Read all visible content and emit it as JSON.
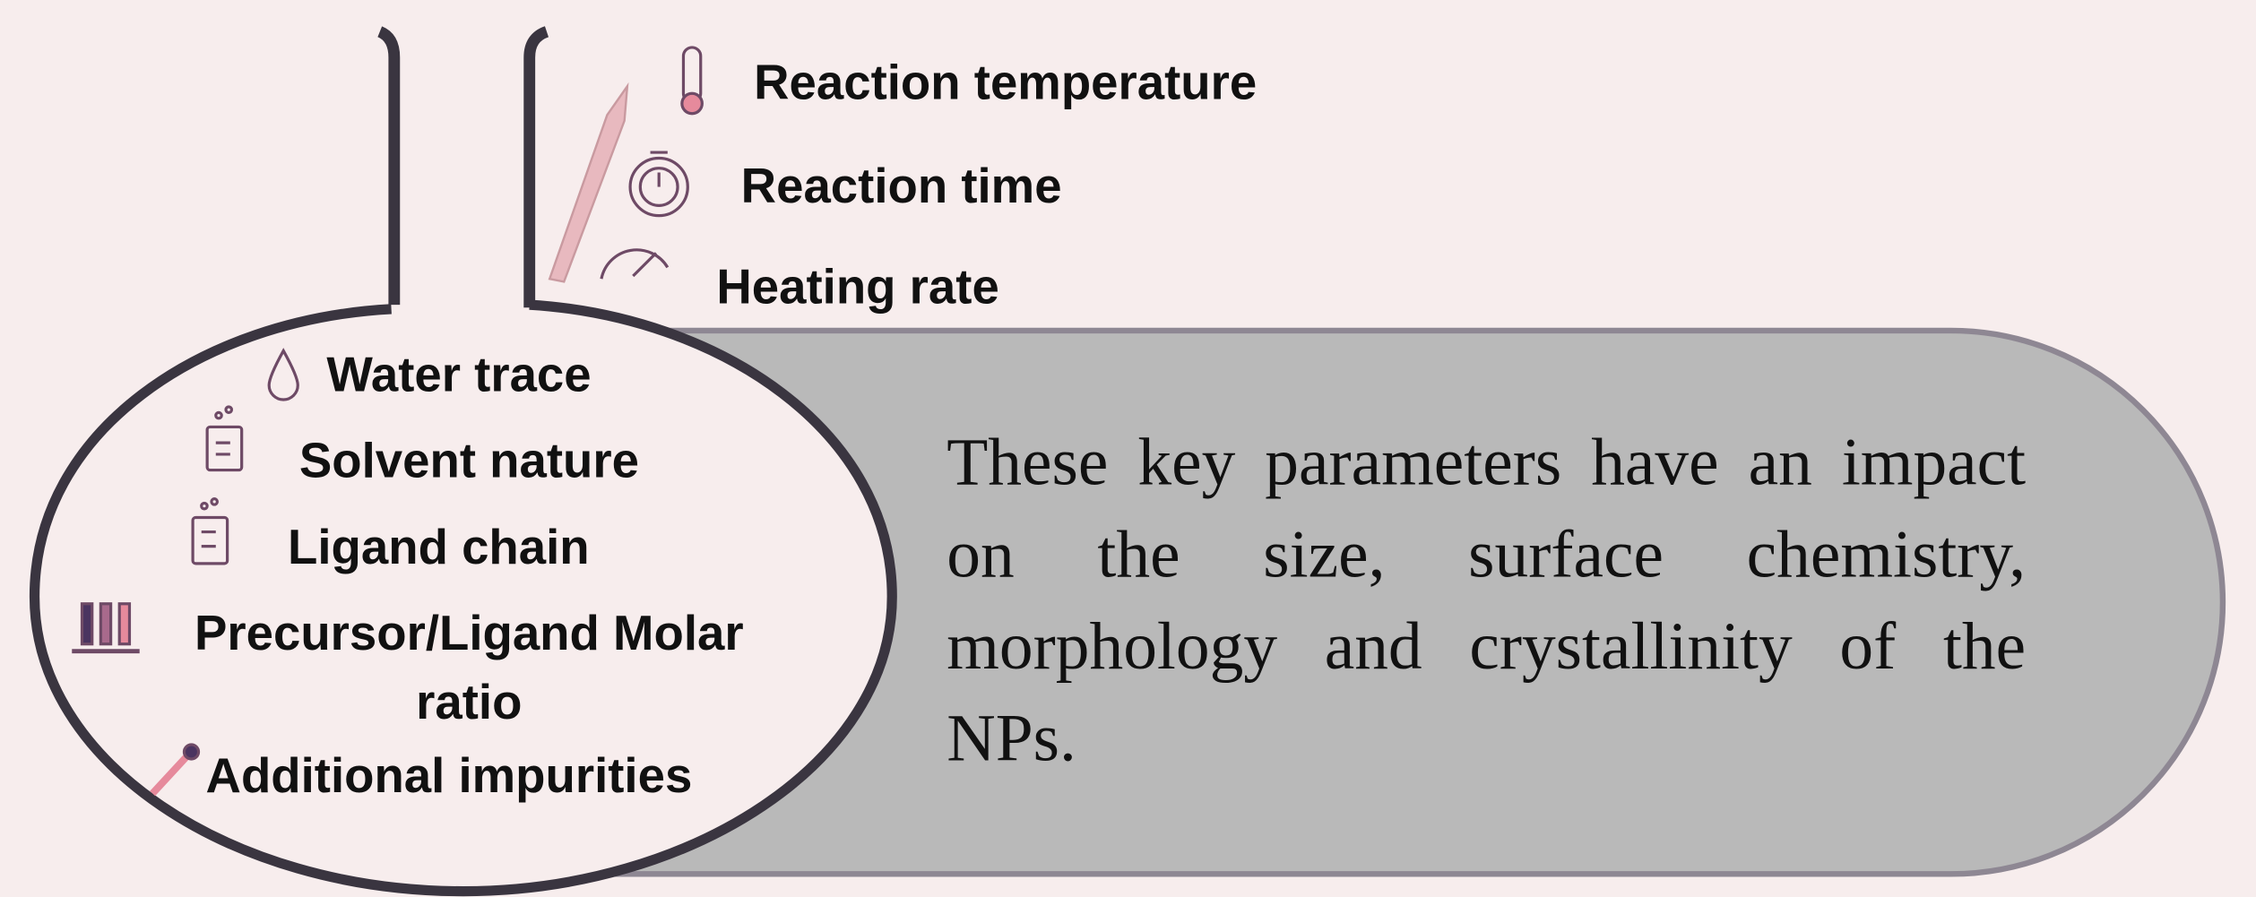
{
  "top_parameters": [
    "Reaction temperature",
    "Reaction time",
    "Heating rate"
  ],
  "flask_parameters": [
    "Water trace",
    "Solvent nature",
    "Ligand chain",
    "Precursor/Ligand Molar ratio",
    "Additional impurities"
  ],
  "statement": "These key parameters have an impact on the size, surface chemistry, morphology and crystallinity of the NPs."
}
